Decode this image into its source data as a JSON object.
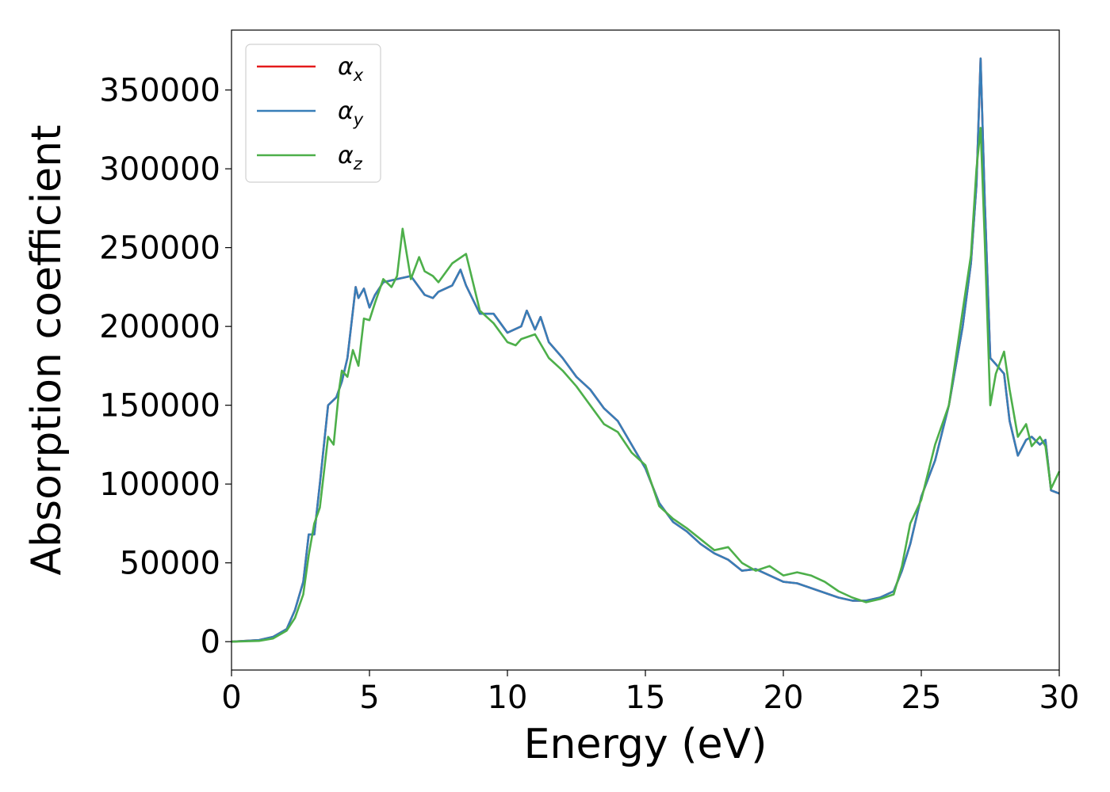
{
  "chart_data": {
    "type": "line",
    "xlabel": "Energy (eV)",
    "ylabel": "Absorption coefficient",
    "xlim": [
      0,
      30
    ],
    "ylim": [
      -18000,
      388000
    ],
    "x_ticks": [
      0,
      5,
      10,
      15,
      20,
      25,
      30
    ],
    "y_ticks": [
      0,
      50000,
      100000,
      150000,
      200000,
      250000,
      300000,
      350000
    ],
    "grid": false,
    "legend_position": "top-left",
    "series": [
      {
        "name": "α",
        "subscript": "x",
        "color": "#e41a1c",
        "x": [
          0,
          1,
          1.5,
          2,
          2.3,
          2.6,
          2.8,
          3.0,
          3.2,
          3.5,
          3.8,
          4.0,
          4.2,
          4.5,
          4.6,
          4.8,
          5.0,
          5.2,
          5.5,
          6.0,
          6.5,
          7.0,
          7.3,
          7.5,
          8.0,
          8.3,
          8.5,
          9.0,
          9.5,
          10.0,
          10.5,
          10.7,
          11.0,
          11.2,
          11.5,
          12.0,
          12.5,
          13.0,
          13.5,
          14.0,
          14.5,
          15.0,
          15.5,
          16.0,
          16.5,
          17.0,
          17.5,
          18.0,
          18.5,
          19.0,
          19.5,
          20.0,
          20.5,
          21.0,
          21.5,
          22.0,
          22.5,
          23.0,
          23.5,
          24.0,
          24.3,
          24.6,
          25.0,
          25.5,
          26.0,
          26.5,
          26.8,
          27.0,
          27.15,
          27.3,
          27.5,
          27.7,
          28.0,
          28.2,
          28.5,
          28.8,
          29.0,
          29.3,
          29.5,
          29.7,
          30.0
        ],
        "y": [
          0,
          1000,
          3000,
          8000,
          20000,
          38000,
          68000,
          68000,
          100000,
          150000,
          155000,
          165000,
          180000,
          225000,
          218000,
          224000,
          212000,
          220000,
          228000,
          230000,
          232000,
          220000,
          218000,
          222000,
          226000,
          236000,
          226000,
          208000,
          208000,
          196000,
          200000,
          210000,
          198000,
          206000,
          190000,
          180000,
          168000,
          160000,
          148000,
          140000,
          125000,
          110000,
          88000,
          76000,
          70000,
          62000,
          56000,
          52000,
          45000,
          46000,
          42000,
          38000,
          37000,
          34000,
          31000,
          28000,
          26000,
          26000,
          28000,
          32000,
          45000,
          62000,
          92000,
          115000,
          150000,
          200000,
          240000,
          290000,
          370000,
          280000,
          180000,
          176000,
          170000,
          140000,
          118000,
          128000,
          130000,
          125000,
          128000,
          96000,
          94000
        ]
      },
      {
        "name": "α",
        "subscript": "y",
        "color": "#377eb8",
        "x": [
          0,
          1,
          1.5,
          2,
          2.3,
          2.6,
          2.8,
          3.0,
          3.2,
          3.5,
          3.8,
          4.0,
          4.2,
          4.5,
          4.6,
          4.8,
          5.0,
          5.2,
          5.5,
          6.0,
          6.5,
          7.0,
          7.3,
          7.5,
          8.0,
          8.3,
          8.5,
          9.0,
          9.5,
          10.0,
          10.5,
          10.7,
          11.0,
          11.2,
          11.5,
          12.0,
          12.5,
          13.0,
          13.5,
          14.0,
          14.5,
          15.0,
          15.5,
          16.0,
          16.5,
          17.0,
          17.5,
          18.0,
          18.5,
          19.0,
          19.5,
          20.0,
          20.5,
          21.0,
          21.5,
          22.0,
          22.5,
          23.0,
          23.5,
          24.0,
          24.3,
          24.6,
          25.0,
          25.5,
          26.0,
          26.5,
          26.8,
          27.0,
          27.15,
          27.3,
          27.5,
          27.7,
          28.0,
          28.2,
          28.5,
          28.8,
          29.0,
          29.3,
          29.5,
          29.7,
          30.0
        ],
        "y": [
          0,
          1000,
          3000,
          8000,
          20000,
          38000,
          68000,
          68000,
          100000,
          150000,
          155000,
          165000,
          180000,
          225000,
          218000,
          224000,
          212000,
          220000,
          228000,
          230000,
          232000,
          220000,
          218000,
          222000,
          226000,
          236000,
          226000,
          208000,
          208000,
          196000,
          200000,
          210000,
          198000,
          206000,
          190000,
          180000,
          168000,
          160000,
          148000,
          140000,
          125000,
          110000,
          88000,
          76000,
          70000,
          62000,
          56000,
          52000,
          45000,
          46000,
          42000,
          38000,
          37000,
          34000,
          31000,
          28000,
          26000,
          26000,
          28000,
          32000,
          45000,
          62000,
          92000,
          115000,
          150000,
          200000,
          240000,
          290000,
          370000,
          280000,
          180000,
          176000,
          170000,
          140000,
          118000,
          128000,
          130000,
          125000,
          128000,
          96000,
          94000
        ]
      },
      {
        "name": "α",
        "subscript": "z",
        "color": "#4daf4a",
        "x": [
          0,
          1,
          1.5,
          2,
          2.3,
          2.6,
          2.8,
          3.0,
          3.2,
          3.5,
          3.7,
          3.9,
          4.0,
          4.2,
          4.4,
          4.6,
          4.8,
          5.0,
          5.2,
          5.5,
          5.8,
          6.0,
          6.2,
          6.5,
          6.8,
          7.0,
          7.3,
          7.5,
          8.0,
          8.5,
          9.0,
          9.5,
          10.0,
          10.3,
          10.5,
          11.0,
          11.5,
          12.0,
          12.5,
          13.0,
          13.5,
          14.0,
          14.5,
          15.0,
          15.5,
          16.0,
          16.5,
          17.0,
          17.5,
          18.0,
          18.5,
          19.0,
          19.5,
          20.0,
          20.5,
          21.0,
          21.5,
          22.0,
          22.5,
          23.0,
          23.5,
          24.0,
          24.3,
          24.6,
          25.0,
          25.5,
          26.0,
          26.5,
          26.8,
          27.0,
          27.15,
          27.3,
          27.5,
          27.7,
          28.0,
          28.2,
          28.5,
          28.8,
          29.0,
          29.3,
          29.5,
          29.7,
          30.0
        ],
        "y": [
          0,
          500,
          2000,
          7000,
          15000,
          30000,
          55000,
          75000,
          85000,
          130000,
          125000,
          160000,
          172000,
          168000,
          185000,
          175000,
          205000,
          204000,
          215000,
          230000,
          225000,
          232000,
          262000,
          230000,
          244000,
          235000,
          232000,
          228000,
          240000,
          246000,
          210000,
          202000,
          190000,
          188000,
          192000,
          195000,
          180000,
          172000,
          162000,
          150000,
          138000,
          133000,
          120000,
          112000,
          86000,
          78000,
          72000,
          65000,
          58000,
          60000,
          50000,
          45000,
          48000,
          42000,
          44000,
          42000,
          38000,
          32000,
          28000,
          25000,
          27000,
          30000,
          48000,
          75000,
          90000,
          125000,
          150000,
          210000,
          245000,
          300000,
          326000,
          255000,
          150000,
          170000,
          184000,
          160000,
          130000,
          138000,
          124000,
          130000,
          124000,
          97000,
          108000
        ]
      }
    ]
  }
}
